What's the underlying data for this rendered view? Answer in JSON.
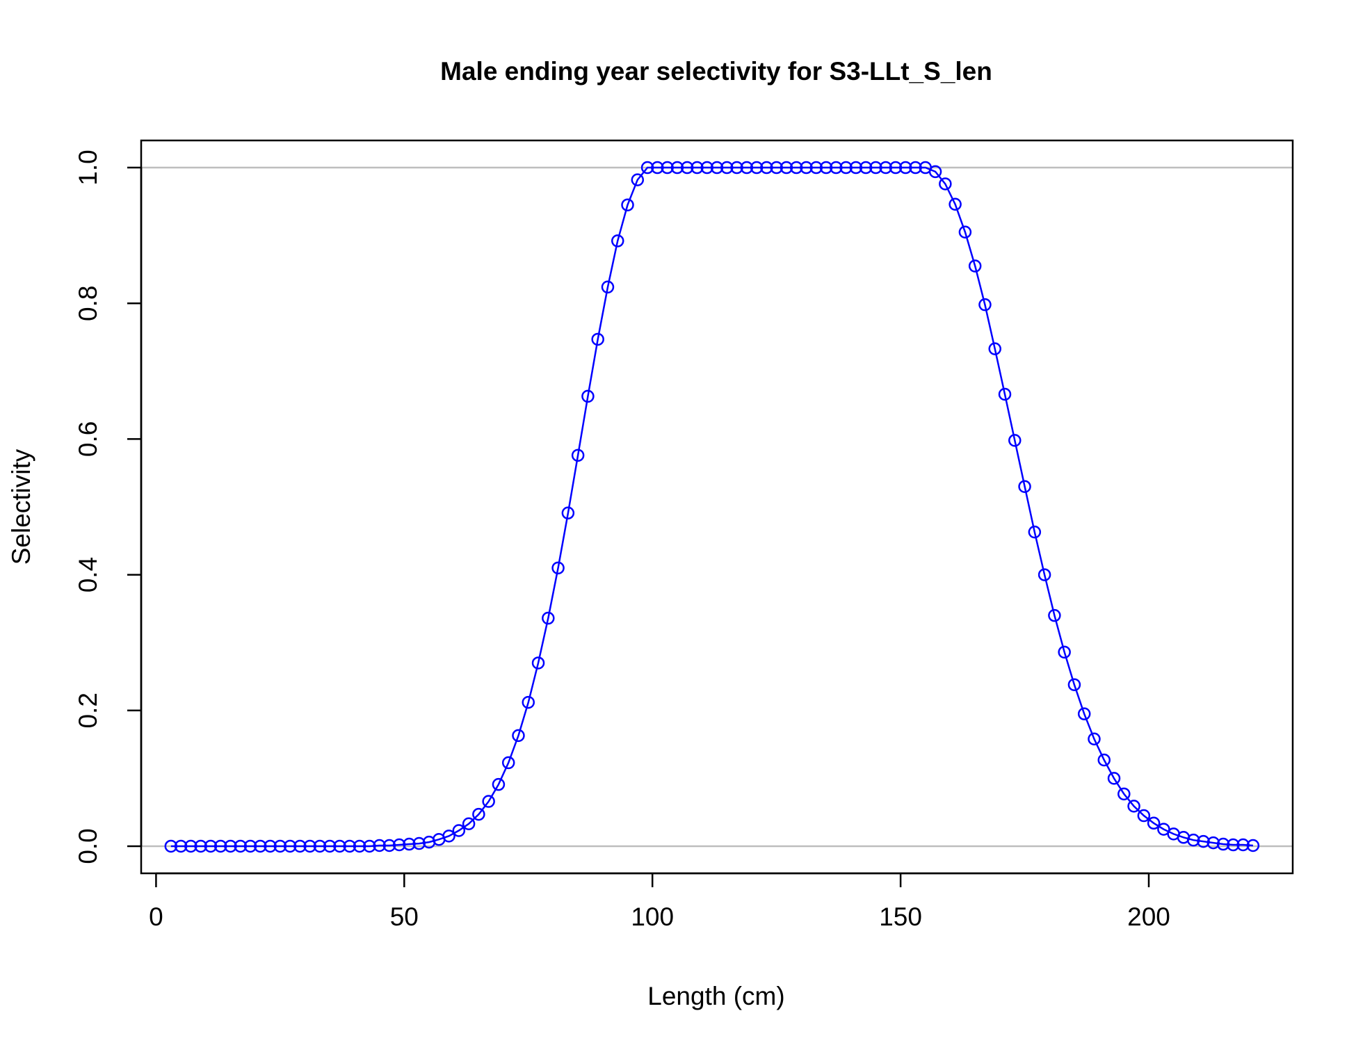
{
  "chart_data": {
    "type": "line",
    "title": "Male ending year selectivity for S3-LLt_S_len",
    "xlabel": "Length (cm)",
    "ylabel": "Selectivity",
    "xlim": [
      -3,
      229
    ],
    "ylim": [
      -0.04,
      1.04
    ],
    "x_ticks": [
      0,
      50,
      100,
      150,
      200
    ],
    "y_ticks": [
      0.0,
      0.2,
      0.4,
      0.6,
      0.8,
      1.0
    ],
    "x_tick_labels": [
      "0",
      "50",
      "100",
      "150",
      "200"
    ],
    "y_tick_labels": [
      "0.0",
      "0.2",
      "0.4",
      "0.6",
      "0.8",
      "1.0"
    ],
    "reference_lines_y": [
      0,
      1
    ],
    "reference_line_color": "#bebebe",
    "series": [
      {
        "color": "#0000ff",
        "marker": "open-circle",
        "x": [
          3,
          5,
          7,
          9,
          11,
          13,
          15,
          17,
          19,
          21,
          23,
          25,
          27,
          29,
          31,
          33,
          35,
          37,
          39,
          41,
          43,
          45,
          47,
          49,
          51,
          53,
          55,
          57,
          59,
          61,
          63,
          65,
          67,
          69,
          71,
          73,
          75,
          77,
          79,
          81,
          83,
          85,
          87,
          89,
          91,
          93,
          95,
          97,
          99,
          101,
          103,
          105,
          107,
          109,
          111,
          113,
          115,
          117,
          119,
          121,
          123,
          125,
          127,
          129,
          131,
          133,
          135,
          137,
          139,
          141,
          143,
          145,
          147,
          149,
          151,
          153,
          155,
          157,
          159,
          161,
          163,
          165,
          167,
          169,
          171,
          173,
          175,
          177,
          179,
          181,
          183,
          185,
          187,
          189,
          191,
          193,
          195,
          197,
          199,
          201,
          203,
          205,
          207,
          209,
          211,
          213,
          215,
          217,
          219,
          221
        ],
        "y": [
          0,
          0,
          0,
          0,
          0,
          0,
          0,
          0,
          0,
          0,
          0,
          0,
          0,
          0,
          0,
          0,
          0,
          0,
          0,
          0,
          0,
          0.001,
          0.001,
          0.002,
          0.003,
          0.004,
          0.006,
          0.01,
          0.015,
          0.023,
          0.033,
          0.047,
          0.066,
          0.091,
          0.123,
          0.163,
          0.212,
          0.27,
          0.336,
          0.41,
          0.491,
          0.576,
          0.663,
          0.747,
          0.824,
          0.892,
          0.945,
          0.982,
          1,
          1,
          1,
          1,
          1,
          1,
          1,
          1,
          1,
          1,
          1,
          1,
          1,
          1,
          1,
          1,
          1,
          1,
          1,
          1,
          1,
          1,
          1,
          1,
          1,
          1,
          1,
          1,
          1,
          0.994,
          0.976,
          0.946,
          0.905,
          0.855,
          0.798,
          0.733,
          0.666,
          0.598,
          0.53,
          0.463,
          0.4,
          0.34,
          0.286,
          0.238,
          0.195,
          0.158,
          0.127,
          0.1,
          0.077,
          0.059,
          0.045,
          0.034,
          0.025,
          0.018,
          0.013,
          0.009,
          0.007,
          0.005,
          0.003,
          0.002,
          0.002,
          0.001
        ]
      }
    ]
  }
}
